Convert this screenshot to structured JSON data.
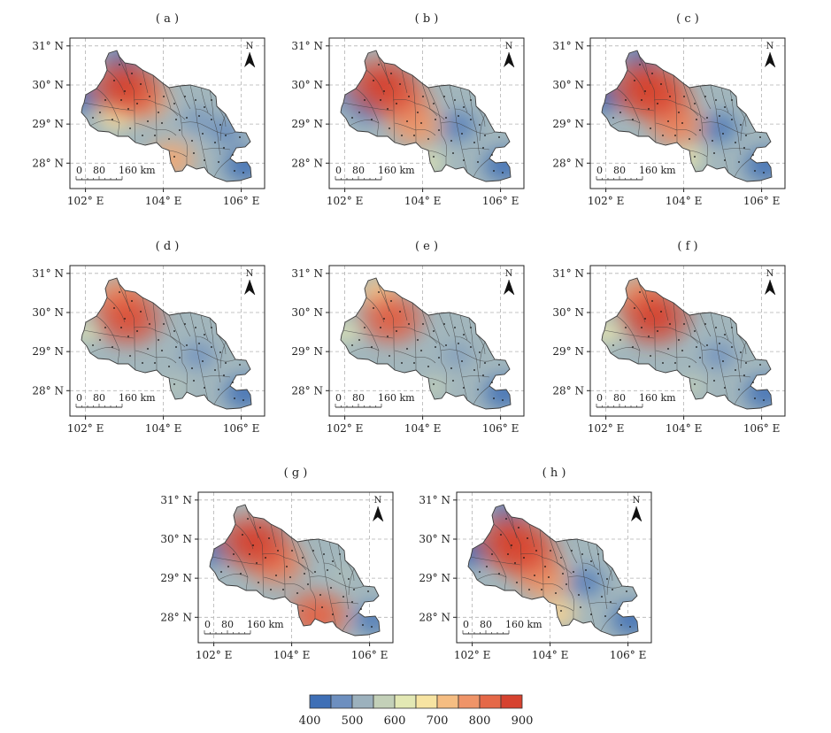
{
  "panels": [
    {
      "label": "( a )",
      "hotspots": [
        {
          "x": 103.0,
          "y": 29.95,
          "v": 900
        },
        {
          "x": 103.5,
          "y": 29.6,
          "v": 780
        },
        {
          "x": 102.8,
          "y": 29.2,
          "v": 680
        },
        {
          "x": 104.2,
          "y": 28.1,
          "v": 760
        },
        {
          "x": 101.85,
          "y": 29.7,
          "v": 410
        },
        {
          "x": 102.95,
          "y": 30.65,
          "v": 420
        },
        {
          "x": 104.9,
          "y": 29.1,
          "v": 470
        },
        {
          "x": 106.1,
          "y": 27.95,
          "v": 400
        },
        {
          "x": 105.6,
          "y": 28.8,
          "v": 450
        }
      ]
    },
    {
      "label": "( b )",
      "hotspots": [
        {
          "x": 102.95,
          "y": 30.0,
          "v": 900
        },
        {
          "x": 103.5,
          "y": 29.55,
          "v": 820
        },
        {
          "x": 103.85,
          "y": 28.95,
          "v": 780
        },
        {
          "x": 102.6,
          "y": 29.4,
          "v": 430
        },
        {
          "x": 101.85,
          "y": 29.75,
          "v": 450
        },
        {
          "x": 102.9,
          "y": 30.6,
          "v": 540
        },
        {
          "x": 104.9,
          "y": 28.95,
          "v": 430
        },
        {
          "x": 106.1,
          "y": 27.95,
          "v": 400
        },
        {
          "x": 104.2,
          "y": 28.0,
          "v": 620
        }
      ]
    },
    {
      "label": "( c )",
      "hotspots": [
        {
          "x": 103.0,
          "y": 29.95,
          "v": 900
        },
        {
          "x": 103.45,
          "y": 29.6,
          "v": 850
        },
        {
          "x": 103.85,
          "y": 28.95,
          "v": 800
        },
        {
          "x": 101.9,
          "y": 29.7,
          "v": 400
        },
        {
          "x": 102.9,
          "y": 30.7,
          "v": 420
        },
        {
          "x": 104.9,
          "y": 28.9,
          "v": 420
        },
        {
          "x": 106.1,
          "y": 27.95,
          "v": 400
        },
        {
          "x": 104.1,
          "y": 28.1,
          "v": 640
        }
      ]
    },
    {
      "label": "( d )",
      "hotspots": [
        {
          "x": 103.1,
          "y": 29.85,
          "v": 880
        },
        {
          "x": 102.9,
          "y": 30.4,
          "v": 790
        },
        {
          "x": 102.0,
          "y": 29.5,
          "v": 610
        },
        {
          "x": 104.9,
          "y": 28.9,
          "v": 460
        },
        {
          "x": 106.1,
          "y": 27.95,
          "v": 400
        },
        {
          "x": 104.3,
          "y": 28.1,
          "v": 560
        }
      ]
    },
    {
      "label": "( e )",
      "hotspots": [
        {
          "x": 103.2,
          "y": 29.85,
          "v": 860
        },
        {
          "x": 102.9,
          "y": 30.5,
          "v": 720
        },
        {
          "x": 102.0,
          "y": 29.5,
          "v": 620
        },
        {
          "x": 104.9,
          "y": 28.9,
          "v": 480
        },
        {
          "x": 106.1,
          "y": 27.95,
          "v": 400
        },
        {
          "x": 104.3,
          "y": 28.1,
          "v": 580
        }
      ]
    },
    {
      "label": "( f )",
      "hotspots": [
        {
          "x": 103.25,
          "y": 29.9,
          "v": 900
        },
        {
          "x": 102.9,
          "y": 30.45,
          "v": 780
        },
        {
          "x": 102.0,
          "y": 29.5,
          "v": 640
        },
        {
          "x": 104.9,
          "y": 28.9,
          "v": 460
        },
        {
          "x": 106.1,
          "y": 27.95,
          "v": 400
        },
        {
          "x": 104.2,
          "y": 28.1,
          "v": 580
        }
      ]
    },
    {
      "label": "( g )",
      "hotspots": [
        {
          "x": 103.0,
          "y": 29.95,
          "v": 900
        },
        {
          "x": 103.6,
          "y": 29.4,
          "v": 820
        },
        {
          "x": 104.65,
          "y": 28.05,
          "v": 850
        },
        {
          "x": 101.9,
          "y": 29.7,
          "v": 420
        },
        {
          "x": 102.9,
          "y": 30.65,
          "v": 540
        },
        {
          "x": 105.3,
          "y": 29.1,
          "v": 540
        },
        {
          "x": 106.1,
          "y": 27.95,
          "v": 420
        }
      ]
    },
    {
      "label": "( h )",
      "hotspots": [
        {
          "x": 103.0,
          "y": 29.95,
          "v": 900
        },
        {
          "x": 103.45,
          "y": 29.55,
          "v": 850
        },
        {
          "x": 103.85,
          "y": 28.95,
          "v": 780
        },
        {
          "x": 101.9,
          "y": 29.7,
          "v": 400
        },
        {
          "x": 102.9,
          "y": 30.7,
          "v": 430
        },
        {
          "x": 104.9,
          "y": 28.9,
          "v": 430
        },
        {
          "x": 106.1,
          "y": 27.95,
          "v": 400
        },
        {
          "x": 104.2,
          "y": 28.1,
          "v": 700
        }
      ]
    }
  ],
  "map_axes": {
    "lon_ticks": [
      102,
      104,
      106
    ],
    "lat_ticks": [
      28,
      29,
      30,
      31
    ],
    "lon_tick_labels": [
      "102° E",
      "104° E",
      "106° E"
    ],
    "lat_tick_labels": [
      "28° N",
      "29° N",
      "30° N",
      "31° N"
    ],
    "lon_range": [
      101.6,
      106.6
    ],
    "lat_range": [
      27.35,
      31.2
    ]
  },
  "north_arrow": {
    "label": "N",
    "icon": "north-arrow-icon"
  },
  "scale_bar": {
    "ticks": [
      "0",
      "80",
      "160 km"
    ]
  },
  "legend": {
    "tick_labels": [
      "400",
      "500",
      "600",
      "700",
      "800",
      "900"
    ],
    "range": [
      400,
      900
    ],
    "colors": [
      "#3e6fb6",
      "#6d8fbf",
      "#9cb1bd",
      "#c3d0b8",
      "#e3e8b4",
      "#f7e4a2",
      "#f5bd82",
      "#ef9468",
      "#e56848",
      "#d6422f"
    ]
  },
  "style": {
    "frame_color": "#222222",
    "grid_color": "#b3b3b3",
    "boundary_color": "#3a3a3a"
  }
}
